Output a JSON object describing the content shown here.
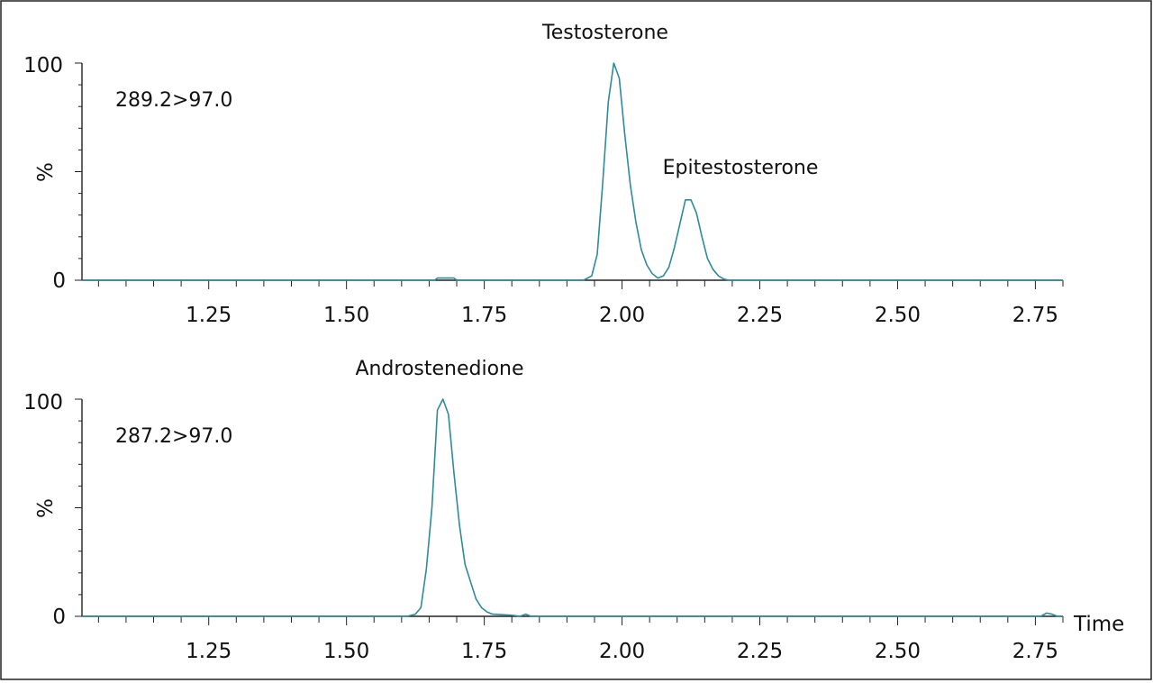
{
  "chart_data": {
    "type": "line",
    "x_axis_title": "Time",
    "x_tick_labels": [
      "1.25",
      "1.50",
      "1.75",
      "2.00",
      "2.25",
      "2.50",
      "2.75"
    ],
    "x_tick_values": [
      1.25,
      1.5,
      1.75,
      2.0,
      2.25,
      2.5,
      2.75
    ],
    "xlim": [
      1.02,
      2.8
    ],
    "ylim": [
      0,
      100
    ],
    "y_tick_labels": [
      "0",
      "%",
      "100"
    ],
    "trace_color": "#2e8b9a",
    "panels": [
      {
        "transition": "289.2>97.0",
        "ylabel": "%",
        "series": [
          {
            "name": "289.2>97.0",
            "points": [
              [
                1.02,
                0
              ],
              [
                1.66,
                0
              ],
              [
                1.665,
                1
              ],
              [
                1.695,
                1
              ],
              [
                1.7,
                0
              ],
              [
                1.93,
                0
              ],
              [
                1.945,
                2
              ],
              [
                1.955,
                12
              ],
              [
                1.965,
                45
              ],
              [
                1.975,
                82
              ],
              [
                1.985,
                100
              ],
              [
                1.995,
                93
              ],
              [
                2.005,
                67
              ],
              [
                2.015,
                44
              ],
              [
                2.025,
                27
              ],
              [
                2.035,
                14
              ],
              [
                2.045,
                7
              ],
              [
                2.055,
                3
              ],
              [
                2.065,
                1
              ],
              [
                2.075,
                2
              ],
              [
                2.085,
                6
              ],
              [
                2.095,
                15
              ],
              [
                2.105,
                26
              ],
              [
                2.115,
                37
              ],
              [
                2.125,
                37
              ],
              [
                2.135,
                31
              ],
              [
                2.145,
                20
              ],
              [
                2.155,
                10
              ],
              [
                2.165,
                5
              ],
              [
                2.175,
                2
              ],
              [
                2.185,
                0.5
              ],
              [
                2.195,
                0
              ],
              [
                2.8,
                0
              ]
            ]
          }
        ],
        "annotations": [
          {
            "text": "Testosterone",
            "x": 1.985,
            "y": 114
          },
          {
            "text": "Epitestosterone",
            "x": 2.145,
            "y": 51
          }
        ]
      },
      {
        "transition": "287.2>97.0",
        "ylabel": "%",
        "series": [
          {
            "name": "287.2>97.0",
            "points": [
              [
                1.02,
                0
              ],
              [
                1.61,
                0
              ],
              [
                1.625,
                1
              ],
              [
                1.635,
                4
              ],
              [
                1.645,
                22
              ],
              [
                1.655,
                50
              ],
              [
                1.665,
                95
              ],
              [
                1.675,
                100
              ],
              [
                1.685,
                93
              ],
              [
                1.695,
                66
              ],
              [
                1.705,
                42
              ],
              [
                1.715,
                24
              ],
              [
                1.725,
                16
              ],
              [
                1.735,
                8
              ],
              [
                1.745,
                4
              ],
              [
                1.755,
                2
              ],
              [
                1.765,
                1
              ],
              [
                1.8,
                0.5
              ],
              [
                1.815,
                0
              ],
              [
                1.825,
                1
              ],
              [
                1.835,
                0
              ],
              [
                2.76,
                0
              ],
              [
                2.77,
                1.5
              ],
              [
                2.78,
                1
              ],
              [
                2.79,
                0
              ],
              [
                2.8,
                0
              ]
            ]
          }
        ],
        "annotations": [
          {
            "text": "Androstenedione",
            "x": 1.67,
            "y": 114
          }
        ]
      }
    ]
  }
}
